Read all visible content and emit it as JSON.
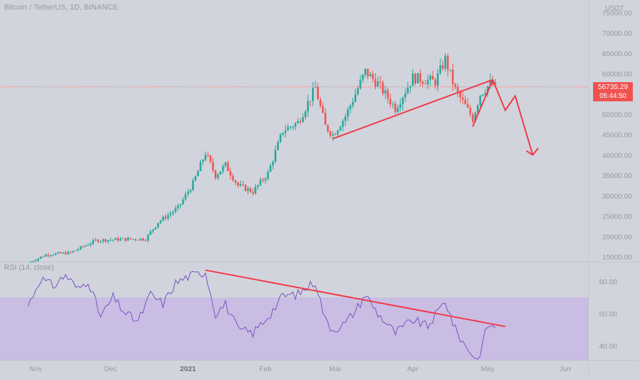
{
  "header": {
    "symbol_title": "Bitcoin / TetherUS, 1D, BINANCE",
    "currency": "USDT"
  },
  "price_badge": {
    "price": "56735.29",
    "countdown": "05:44:50"
  },
  "colors": {
    "background": "#d1d4dc",
    "up": "#26a69a",
    "down": "#ef5350",
    "trendline": "#f23645",
    "rsi_line": "#7e57c2",
    "rsi_band": "#c9bde3"
  },
  "chart_data": [
    {
      "type": "candlestick",
      "title": "Bitcoin / TetherUS, 1D, BINANCE",
      "x_tick_labels": [
        "Nov",
        "Dec",
        "2021",
        "Feb",
        "Mar",
        "Apr",
        "May",
        "Jun"
      ],
      "y_tick_labels": [
        "15000.00",
        "20000.00",
        "25000.00",
        "30000.00",
        "35000.00",
        "40000.00",
        "45000.00",
        "50000.00",
        "55000.00",
        "60000.00",
        "65000.00",
        "70000.00",
        "75000.00"
      ],
      "ylim": [
        15000,
        75000
      ],
      "last_price": 56735.29,
      "close_path": [
        {
          "date": "2020-10-29",
          "close": 13500
        },
        {
          "date": "2020-11-05",
          "close": 15500
        },
        {
          "date": "2020-11-15",
          "close": 16000
        },
        {
          "date": "2020-11-25",
          "close": 19000
        },
        {
          "date": "2020-12-05",
          "close": 19300
        },
        {
          "date": "2020-12-15",
          "close": 19400
        },
        {
          "date": "2020-12-20",
          "close": 23500
        },
        {
          "date": "2020-12-28",
          "close": 27000
        },
        {
          "date": "2021-01-03",
          "close": 33000
        },
        {
          "date": "2021-01-08",
          "close": 40500
        },
        {
          "date": "2021-01-12",
          "close": 35000
        },
        {
          "date": "2021-01-16",
          "close": 37500
        },
        {
          "date": "2021-01-21",
          "close": 32500
        },
        {
          "date": "2021-01-27",
          "close": 31000
        },
        {
          "date": "2021-02-02",
          "close": 35500
        },
        {
          "date": "2021-02-08",
          "close": 46000
        },
        {
          "date": "2021-02-14",
          "close": 48000
        },
        {
          "date": "2021-02-21",
          "close": 56500
        },
        {
          "date": "2021-02-25",
          "close": 47000
        },
        {
          "date": "2021-02-28",
          "close": 45000
        },
        {
          "date": "2021-03-05",
          "close": 49500
        },
        {
          "date": "2021-03-13",
          "close": 60500
        },
        {
          "date": "2021-03-18",
          "close": 57500
        },
        {
          "date": "2021-03-25",
          "close": 51500
        },
        {
          "date": "2021-04-01",
          "close": 59000
        },
        {
          "date": "2021-04-10",
          "close": 58000
        },
        {
          "date": "2021-04-14",
          "close": 63500
        },
        {
          "date": "2021-04-18",
          "close": 56000
        },
        {
          "date": "2021-04-22",
          "close": 52000
        },
        {
          "date": "2021-04-25",
          "close": 49000
        },
        {
          "date": "2021-04-28",
          "close": 55000
        },
        {
          "date": "2021-05-02",
          "close": 57500
        },
        {
          "date": "2021-05-04",
          "close": 56735
        }
      ],
      "annotations": {
        "support_trendline": [
          {
            "date": "2021-02-28",
            "price": 44000
          },
          {
            "date": "2021-05-03",
            "price": 58500
          }
        ],
        "rebound_line": [
          {
            "date": "2021-04-25",
            "price": 47000
          },
          {
            "date": "2021-05-03",
            "price": 58500
          }
        ],
        "projection_arrow": [
          {
            "date": "2021-05-03",
            "price": 58500
          },
          {
            "date": "2021-05-08",
            "price": 51000
          },
          {
            "date": "2021-05-12",
            "price": 54500
          },
          {
            "date": "2021-05-19",
            "price": 40000
          }
        ]
      }
    },
    {
      "type": "line",
      "title": "RSI (14, close)",
      "y_tick_labels": [
        "40.00",
        "60.00",
        "80.00"
      ],
      "ylim": [
        30,
        90
      ],
      "overbought": 70,
      "oversold": 30,
      "series": [
        {
          "name": "RSI (14, close)",
          "points": [
            {
              "date": "2020-10-29",
              "value": 65
            },
            {
              "date": "2020-11-03",
              "value": 82
            },
            {
              "date": "2020-11-08",
              "value": 77
            },
            {
              "date": "2020-11-13",
              "value": 84
            },
            {
              "date": "2020-11-18",
              "value": 75
            },
            {
              "date": "2020-11-22",
              "value": 81
            },
            {
              "date": "2020-11-27",
              "value": 58
            },
            {
              "date": "2020-12-02",
              "value": 70
            },
            {
              "date": "2020-12-07",
              "value": 60
            },
            {
              "date": "2020-12-12",
              "value": 55
            },
            {
              "date": "2020-12-17",
              "value": 72
            },
            {
              "date": "2020-12-22",
              "value": 66
            },
            {
              "date": "2020-12-27",
              "value": 79
            },
            {
              "date": "2021-01-01",
              "value": 83
            },
            {
              "date": "2021-01-08",
              "value": 86
            },
            {
              "date": "2021-01-12",
              "value": 60
            },
            {
              "date": "2021-01-16",
              "value": 66
            },
            {
              "date": "2021-01-21",
              "value": 50
            },
            {
              "date": "2021-01-27",
              "value": 48
            },
            {
              "date": "2021-02-03",
              "value": 60
            },
            {
              "date": "2021-02-08",
              "value": 71
            },
            {
              "date": "2021-02-14",
              "value": 72
            },
            {
              "date": "2021-02-21",
              "value": 80
            },
            {
              "date": "2021-02-25",
              "value": 56
            },
            {
              "date": "2021-02-28",
              "value": 50
            },
            {
              "date": "2021-03-05",
              "value": 54
            },
            {
              "date": "2021-03-10",
              "value": 64
            },
            {
              "date": "2021-03-13",
              "value": 72
            },
            {
              "date": "2021-03-18",
              "value": 60
            },
            {
              "date": "2021-03-25",
              "value": 48
            },
            {
              "date": "2021-04-01",
              "value": 56
            },
            {
              "date": "2021-04-07",
              "value": 52
            },
            {
              "date": "2021-04-14",
              "value": 68
            },
            {
              "date": "2021-04-18",
              "value": 50
            },
            {
              "date": "2021-04-22",
              "value": 40
            },
            {
              "date": "2021-04-27",
              "value": 31
            },
            {
              "date": "2021-05-01",
              "value": 53
            },
            {
              "date": "2021-05-04",
              "value": 51
            }
          ]
        }
      ],
      "annotations": {
        "divergence_line": [
          {
            "date": "2021-01-08",
            "value": 87
          },
          {
            "date": "2021-05-08",
            "value": 52
          }
        ]
      }
    }
  ]
}
